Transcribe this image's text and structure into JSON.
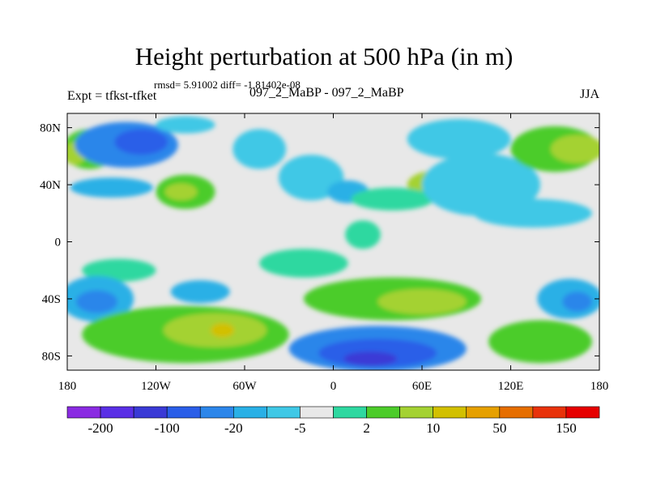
{
  "chart_data": {
    "type": "heatmap",
    "title": "Height perturbation at 500 hPa (in m)",
    "stats_text": "rmsd= 5.91002  diff= -1.81402e-08",
    "left_label": "Expt = tfkst-tfket",
    "center_label": "097_2_MaBP - 097_2_MaBP",
    "right_label": "JJA",
    "x_axis": {
      "range": [
        -180,
        180
      ],
      "ticks": [
        {
          "value": -180,
          "label": "180"
        },
        {
          "value": -120,
          "label": "120W"
        },
        {
          "value": -60,
          "label": "60W"
        },
        {
          "value": 0,
          "label": "0"
        },
        {
          "value": 60,
          "label": "60E"
        },
        {
          "value": 120,
          "label": "120E"
        },
        {
          "value": 180,
          "label": "180"
        }
      ]
    },
    "y_axis": {
      "range": [
        -90,
        90
      ],
      "ticks": [
        {
          "value": 80,
          "label": "80N"
        },
        {
          "value": 40,
          "label": "40N"
        },
        {
          "value": 0,
          "label": "0"
        },
        {
          "value": -40,
          "label": "40S"
        },
        {
          "value": -80,
          "label": "80S"
        }
      ]
    },
    "colorbar": {
      "colors": [
        "#8a2be2",
        "#5a2fe6",
        "#3a3ad6",
        "#2a5ee8",
        "#2c86ea",
        "#29b0e6",
        "#3fc8e6",
        "#e8e8e8",
        "#2ed8a0",
        "#4ccc2a",
        "#a4d232",
        "#d2c000",
        "#e6a000",
        "#e66e00",
        "#e8320a",
        "#e60000"
      ],
      "labels": [
        {
          "after_box": 1,
          "text": "-200"
        },
        {
          "after_box": 3,
          "text": "-100"
        },
        {
          "after_box": 5,
          "text": "-20"
        },
        {
          "after_box": 7,
          "text": "-5"
        },
        {
          "after_box": 9,
          "text": "2"
        },
        {
          "after_box": 11,
          "text": "10"
        },
        {
          "after_box": 13,
          "text": "50"
        },
        {
          "after_box": 15,
          "text": "150"
        }
      ]
    },
    "regions": [
      {
        "lon": -165,
        "lat": 65,
        "rx": 18,
        "ry": 14,
        "level": 9
      },
      {
        "lon": -175,
        "lat": 62,
        "rx": 8,
        "ry": 8,
        "level": 10
      },
      {
        "lon": -140,
        "lat": 68,
        "rx": 35,
        "ry": 16,
        "level": 4
      },
      {
        "lon": -130,
        "lat": 70,
        "rx": 18,
        "ry": 9,
        "level": 3
      },
      {
        "lon": -100,
        "lat": 82,
        "rx": 20,
        "ry": 6,
        "level": 6
      },
      {
        "lon": -150,
        "lat": 38,
        "rx": 28,
        "ry": 7,
        "level": 5
      },
      {
        "lon": -100,
        "lat": 35,
        "rx": 20,
        "ry": 12,
        "level": 9
      },
      {
        "lon": -103,
        "lat": 35,
        "rx": 11,
        "ry": 6,
        "level": 10
      },
      {
        "lon": -50,
        "lat": 65,
        "rx": 18,
        "ry": 14,
        "level": 6
      },
      {
        "lon": -15,
        "lat": 45,
        "rx": 22,
        "ry": 16,
        "level": 6
      },
      {
        "lon": 10,
        "lat": 35,
        "rx": 14,
        "ry": 8,
        "level": 5
      },
      {
        "lon": 70,
        "lat": 40,
        "rx": 20,
        "ry": 10,
        "level": 10
      },
      {
        "lon": 40,
        "lat": 30,
        "rx": 28,
        "ry": 8,
        "level": 8
      },
      {
        "lon": 85,
        "lat": 72,
        "rx": 35,
        "ry": 14,
        "level": 6
      },
      {
        "lon": 100,
        "lat": 40,
        "rx": 40,
        "ry": 22,
        "level": 6
      },
      {
        "lon": 135,
        "lat": 20,
        "rx": 40,
        "ry": 10,
        "level": 6
      },
      {
        "lon": 150,
        "lat": 65,
        "rx": 30,
        "ry": 16,
        "level": 9
      },
      {
        "lon": 165,
        "lat": 65,
        "rx": 18,
        "ry": 10,
        "level": 10
      },
      {
        "lon": -145,
        "lat": -20,
        "rx": 25,
        "ry": 8,
        "level": 8
      },
      {
        "lon": -20,
        "lat": -15,
        "rx": 30,
        "ry": 10,
        "level": 8
      },
      {
        "lon": 20,
        "lat": 5,
        "rx": 12,
        "ry": 10,
        "level": 8
      },
      {
        "lon": -160,
        "lat": -40,
        "rx": 25,
        "ry": 16,
        "level": 5
      },
      {
        "lon": -160,
        "lat": -42,
        "rx": 14,
        "ry": 8,
        "level": 4
      },
      {
        "lon": -90,
        "lat": -35,
        "rx": 20,
        "ry": 8,
        "level": 5
      },
      {
        "lon": -100,
        "lat": -65,
        "rx": 70,
        "ry": 20,
        "level": 9
      },
      {
        "lon": -80,
        "lat": -62,
        "rx": 35,
        "ry": 12,
        "level": 10
      },
      {
        "lon": -75,
        "lat": -62,
        "rx": 8,
        "ry": 5,
        "level": 11
      },
      {
        "lon": 40,
        "lat": -40,
        "rx": 60,
        "ry": 15,
        "level": 9
      },
      {
        "lon": 60,
        "lat": -42,
        "rx": 30,
        "ry": 9,
        "level": 10
      },
      {
        "lon": 30,
        "lat": -75,
        "rx": 60,
        "ry": 16,
        "level": 4
      },
      {
        "lon": 30,
        "lat": -78,
        "rx": 40,
        "ry": 10,
        "level": 3
      },
      {
        "lon": 25,
        "lat": -82,
        "rx": 18,
        "ry": 5,
        "level": 2
      },
      {
        "lon": 140,
        "lat": -70,
        "rx": 35,
        "ry": 15,
        "level": 9
      },
      {
        "lon": 160,
        "lat": -40,
        "rx": 22,
        "ry": 14,
        "level": 5
      },
      {
        "lon": 165,
        "lat": -42,
        "rx": 10,
        "ry": 7,
        "level": 4
      }
    ]
  }
}
